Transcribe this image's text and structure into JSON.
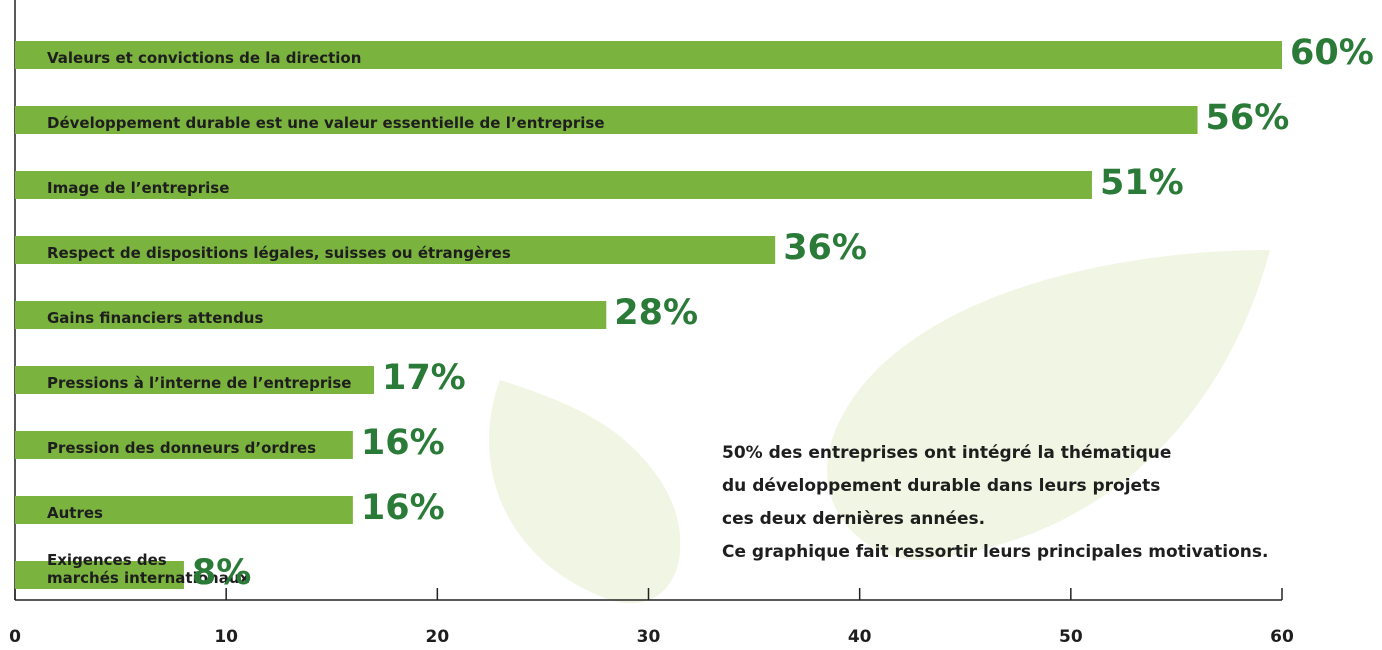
{
  "chart_data": {
    "type": "bar",
    "orientation": "horizontal",
    "categories": [
      "Valeurs et convictions de la direction",
      "Développement durable est une valeur essentielle de l’entreprise",
      "Image de l’entreprise",
      "Respect de dispositions légales, suisses ou étrangères",
      "Gains financiers attendus",
      "Pressions à l’interne de l’entreprise",
      "Pression des donneurs d’ordres",
      "Autres",
      "Exigences des\nmarchés internationaux"
    ],
    "values": [
      60,
      56,
      51,
      36,
      28,
      17,
      16,
      16,
      8
    ],
    "value_labels": [
      "60%",
      "56%",
      "51%",
      "36%",
      "28%",
      "17%",
      "16%",
      "16%",
      "8%"
    ],
    "color": "#7ab33e",
    "xlim": [
      0,
      60
    ],
    "xticks": [
      0,
      10,
      20,
      30,
      40,
      50,
      60
    ],
    "annotation": [
      "50% des entreprises ont intégré la thématique",
      "du développement durable dans leurs projets",
      "ces deux dernières années.",
      "Ce graphique fait ressortir leurs principales motivations."
    ]
  }
}
